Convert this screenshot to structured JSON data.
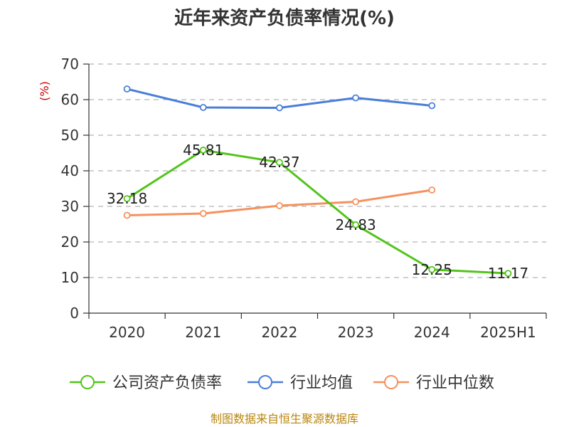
{
  "chart_data": {
    "type": "line",
    "title": "近年来资产负债率情况(%)",
    "ylabel": "(%)",
    "xlabel": "",
    "categories": [
      "2020",
      "2021",
      "2022",
      "2023",
      "2024",
      "2025H1"
    ],
    "ylim": [
      0,
      70
    ],
    "yticks": [
      0,
      10,
      20,
      30,
      40,
      50,
      60,
      70
    ],
    "grid": true,
    "legend_position": "bottom",
    "series": [
      {
        "name": "公司资产负债率",
        "color": "#52c41a",
        "values": [
          32.18,
          45.81,
          42.37,
          24.83,
          12.25,
          11.17
        ],
        "labels": [
          "32.18",
          "45.81",
          "42.37",
          "24.83",
          "12.25",
          "11.17"
        ]
      },
      {
        "name": "行业均值",
        "color": "#4a7fd8",
        "values": [
          63.0,
          57.8,
          57.7,
          60.5,
          58.3,
          null
        ]
      },
      {
        "name": "行业中位数",
        "color": "#f5915e",
        "values": [
          27.5,
          28.0,
          30.2,
          31.3,
          34.6,
          null
        ]
      }
    ]
  },
  "footer": "制图数据来自恒生聚源数据库"
}
